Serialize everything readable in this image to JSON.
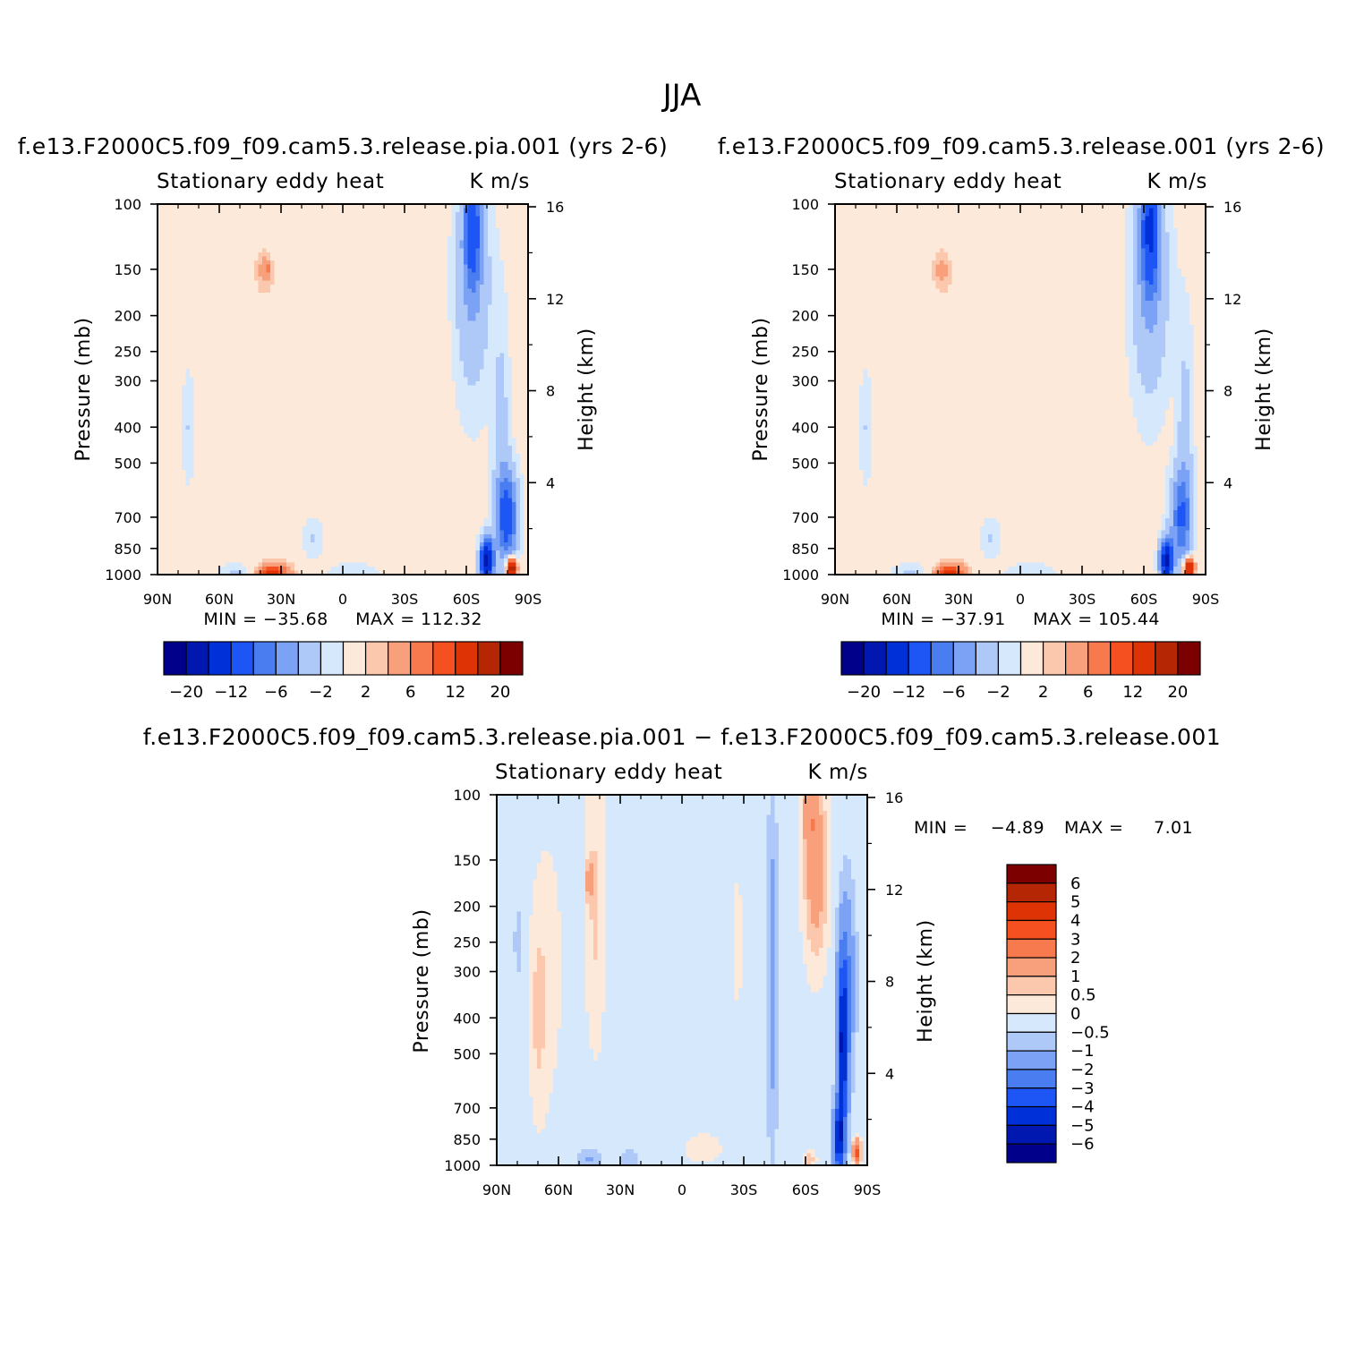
{
  "figure": {
    "title": "JJA"
  },
  "palettes": {
    "absolute": [
      "#00008b",
      "#0018b0",
      "#0030d8",
      "#1e55f5",
      "#4a7df0",
      "#7ba2f4",
      "#aec8f8",
      "#d6e8fc",
      "#fde9d9",
      "#fbc7ad",
      "#f8a07c",
      "#f77a4e",
      "#f5501f",
      "#de3305",
      "#b52605",
      "#7d0000"
    ],
    "difference": [
      "#00008b",
      "#0018b0",
      "#0030d8",
      "#1e55f5",
      "#4a7df0",
      "#7ba2f4",
      "#aec8f8",
      "#d6e8fc",
      "#fde9d9",
      "#fbc7ad",
      "#f8a07c",
      "#f77a4e",
      "#f5501f",
      "#de3305",
      "#b52605",
      "#7d0000"
    ]
  },
  "chart_data": [
    {
      "type": "heatmap",
      "run_title": "f.e13.F2000C5.f09_f09.cam5.3.release.pia.001 (yrs 2-6)",
      "field": "Stationary eddy heat",
      "units": "K m/s",
      "ylabel": "Pressure (mb)",
      "y2label": "Height (km)",
      "xlim": [
        90,
        -90
      ],
      "ylim": [
        100,
        1000
      ],
      "y_scale": "log",
      "x_ticks": [
        {
          "v": 90,
          "label": "90N"
        },
        {
          "v": 60,
          "label": "60N"
        },
        {
          "v": 30,
          "label": "30N"
        },
        {
          "v": 0,
          "label": "0"
        },
        {
          "v": -30,
          "label": "30S"
        },
        {
          "v": -60,
          "label": "60S"
        },
        {
          "v": -90,
          "label": "90S"
        }
      ],
      "y_ticks": [
        100,
        150,
        200,
        250,
        300,
        400,
        500,
        700,
        850,
        1000
      ],
      "height_ticks": [
        16,
        12,
        8,
        4
      ],
      "min_label": "MIN = −35.68",
      "max_label": "MAX = 112.32",
      "min": -35.68,
      "max": 112.32,
      "colorbar": {
        "orientation": "horizontal",
        "tick_labels": [
          "−20",
          "−12",
          "−6",
          "−2",
          "2",
          "6",
          "12",
          "20"
        ]
      },
      "features": [
        {
          "lat": 0,
          "p": 500,
          "v": -0.6,
          "dlat": 200,
          "dlogp": 5
        },
        {
          "lat": 40,
          "p": 200,
          "v": 0.9,
          "dlat": 11,
          "dlogp": 0.5
        },
        {
          "lat": 38,
          "p": 150,
          "v": 2.6,
          "dlat": 4.5,
          "dlogp": 0.13
        },
        {
          "lat": 36,
          "p": 150,
          "v": 3.4,
          "dlat": 1.3,
          "dlogp": 0.035
        },
        {
          "lat": 25,
          "p": 300,
          "v": 1.0,
          "dlat": 8,
          "dlogp": 0.9
        },
        {
          "lat": -42,
          "p": 200,
          "v": 0.9,
          "dlat": 8,
          "dlogp": 1.2
        },
        {
          "lat": -10,
          "p": 500,
          "v": 0.5,
          "dlat": 14,
          "dlogp": 0.35
        },
        {
          "lat": 34,
          "p": 1000,
          "v": 8.0,
          "dlat": 7,
          "dlogp": 0.06
        },
        {
          "lat": 34,
          "p": 1000,
          "v": 2.4,
          "dlat": 12,
          "dlogp": 0.12
        },
        {
          "lat": 50,
          "p": 990,
          "v": -2.0,
          "dlat": 9,
          "dlogp": 0.06
        },
        {
          "lat": 15,
          "p": 800,
          "v": -1.6,
          "dlat": 5,
          "dlogp": 0.12
        },
        {
          "lat": -5,
          "p": 1000,
          "v": -1.3,
          "dlat": 12,
          "dlogp": 0.07
        },
        {
          "lat": -63,
          "p": 115,
          "v": -8.0,
          "dlat": 4,
          "dlogp": 0.35
        },
        {
          "lat": -63,
          "p": 160,
          "v": -3.5,
          "dlat": 9,
          "dlogp": 0.7
        },
        {
          "lat": -77,
          "p": 430,
          "v": -2.2,
          "dlat": 4,
          "dlogp": 0.75
        },
        {
          "lat": -80,
          "p": 700,
          "v": -9.0,
          "dlat": 5,
          "dlogp": 0.28
        },
        {
          "lat": -70,
          "p": 920,
          "v": -18.0,
          "dlat": 3,
          "dlogp": 0.13
        },
        {
          "lat": -82,
          "p": 960,
          "v": 18.0,
          "dlat": 2.5,
          "dlogp": 0.06
        },
        {
          "lat": 75,
          "p": 400,
          "v": -1.5,
          "dlat": 3,
          "dlogp": 0.35
        }
      ]
    },
    {
      "type": "heatmap",
      "run_title": "f.e13.F2000C5.f09_f09.cam5.3.release.001 (yrs 2-6)",
      "field": "Stationary eddy heat",
      "units": "K m/s",
      "ylabel": "Pressure (mb)",
      "y2label": "Height (km)",
      "xlim": [
        90,
        -90
      ],
      "ylim": [
        100,
        1000
      ],
      "y_scale": "log",
      "x_ticks": [
        {
          "v": 90,
          "label": "90N"
        },
        {
          "v": 60,
          "label": "60N"
        },
        {
          "v": 30,
          "label": "30N"
        },
        {
          "v": 0,
          "label": "0"
        },
        {
          "v": -30,
          "label": "30S"
        },
        {
          "v": -60,
          "label": "60S"
        },
        {
          "v": -90,
          "label": "90S"
        }
      ],
      "y_ticks": [
        100,
        150,
        200,
        250,
        300,
        400,
        500,
        700,
        850,
        1000
      ],
      "height_ticks": [
        16,
        12,
        8,
        4
      ],
      "min_label": "MIN = −37.91",
      "max_label": "MAX = 105.44",
      "min": -37.91,
      "max": 105.44,
      "colorbar": {
        "orientation": "horizontal",
        "tick_labels": [
          "−20",
          "−12",
          "−6",
          "−2",
          "2",
          "6",
          "12",
          "20"
        ]
      },
      "features": [
        {
          "lat": 0,
          "p": 500,
          "v": -0.6,
          "dlat": 200,
          "dlogp": 5
        },
        {
          "lat": 40,
          "p": 200,
          "v": 0.9,
          "dlat": 11,
          "dlogp": 0.5
        },
        {
          "lat": 38,
          "p": 150,
          "v": 2.5,
          "dlat": 4.5,
          "dlogp": 0.13
        },
        {
          "lat": 25,
          "p": 300,
          "v": 1.0,
          "dlat": 8,
          "dlogp": 0.9
        },
        {
          "lat": -40,
          "p": 200,
          "v": 0.9,
          "dlat": 8,
          "dlogp": 1.2
        },
        {
          "lat": -10,
          "p": 500,
          "v": 0.5,
          "dlat": 14,
          "dlogp": 0.35
        },
        {
          "lat": 34,
          "p": 1000,
          "v": 7.5,
          "dlat": 7,
          "dlogp": 0.06
        },
        {
          "lat": 34,
          "p": 1000,
          "v": 2.4,
          "dlat": 12,
          "dlogp": 0.12
        },
        {
          "lat": 52,
          "p": 990,
          "v": -2.0,
          "dlat": 9,
          "dlogp": 0.06
        },
        {
          "lat": 15,
          "p": 800,
          "v": -1.6,
          "dlat": 5,
          "dlogp": 0.12
        },
        {
          "lat": -5,
          "p": 1000,
          "v": -1.3,
          "dlat": 12,
          "dlogp": 0.07
        },
        {
          "lat": -63,
          "p": 115,
          "v": -10.0,
          "dlat": 4,
          "dlogp": 0.35
        },
        {
          "lat": -63,
          "p": 160,
          "v": -4.0,
          "dlat": 9,
          "dlogp": 0.7
        },
        {
          "lat": -80,
          "p": 430,
          "v": -2.2,
          "dlat": 4,
          "dlogp": 0.75
        },
        {
          "lat": -78,
          "p": 700,
          "v": -7.0,
          "dlat": 5,
          "dlogp": 0.28
        },
        {
          "lat": -71,
          "p": 920,
          "v": -16.0,
          "dlat": 3,
          "dlogp": 0.13
        },
        {
          "lat": -82,
          "p": 960,
          "v": 16.0,
          "dlat": 2.5,
          "dlogp": 0.06
        },
        {
          "lat": 75,
          "p": 400,
          "v": -1.5,
          "dlat": 3,
          "dlogp": 0.35
        }
      ]
    },
    {
      "type": "heatmap",
      "run_title": "f.e13.F2000C5.f09_f09.cam5.3.release.pia.001 − f.e13.F2000C5.f09_f09.cam5.3.release.001",
      "field": "Stationary eddy heat",
      "units": "K m/s",
      "ylabel": "Pressure (mb)",
      "y2label": "Height (km)",
      "xlim": [
        90,
        -90
      ],
      "ylim": [
        100,
        1000
      ],
      "y_scale": "log",
      "x_ticks": [
        {
          "v": 90,
          "label": "90N"
        },
        {
          "v": 60,
          "label": "60N"
        },
        {
          "v": 30,
          "label": "30N"
        },
        {
          "v": 0,
          "label": "0"
        },
        {
          "v": -30,
          "label": "30S"
        },
        {
          "v": -60,
          "label": "60S"
        },
        {
          "v": -90,
          "label": "90S"
        }
      ],
      "y_ticks": [
        100,
        150,
        200,
        250,
        300,
        400,
        500,
        700,
        850,
        1000
      ],
      "height_ticks": [
        16,
        12,
        8,
        4
      ],
      "min_label": "MIN =",
      "min_value": "−4.89",
      "max_label": "MAX =",
      "max_value": "7.01",
      "min": -4.89,
      "max": 7.01,
      "colorbar": {
        "orientation": "vertical",
        "tick_labels": [
          "6",
          "5",
          "4",
          "3",
          "2",
          "1",
          "0.5",
          "0",
          "−0.5",
          "−1",
          "−2",
          "−3",
          "−4",
          "−5",
          "−6"
        ]
      },
      "features": [
        {
          "lat": 0,
          "p": 400,
          "v": -0.3,
          "dlat": 200,
          "dlogp": 5
        },
        {
          "lat": 42,
          "p": 200,
          "v": 0.9,
          "dlat": 5,
          "dlogp": 0.9
        },
        {
          "lat": 45,
          "p": 170,
          "v": 1.6,
          "dlat": 1.5,
          "dlogp": 0.12
        },
        {
          "lat": 70,
          "p": 400,
          "v": 0.7,
          "dlat": 4,
          "dlogp": 0.6
        },
        {
          "lat": 65,
          "p": 300,
          "v": 0.5,
          "dlat": 8,
          "dlogp": 0.9
        },
        {
          "lat": 15,
          "p": 350,
          "v": 0.3,
          "dlat": 4,
          "dlogp": 0.7
        },
        {
          "lat": -27,
          "p": 250,
          "v": 0.5,
          "dlat": 3,
          "dlogp": 0.5
        },
        {
          "lat": -65,
          "p": 160,
          "v": 1.9,
          "dlat": 6,
          "dlogp": 0.55
        },
        {
          "lat": -62,
          "p": 110,
          "v": 1.2,
          "dlat": 4,
          "dlogp": 0.25
        },
        {
          "lat": -78,
          "p": 500,
          "v": -4.5,
          "dlat": 2.5,
          "dlogp": 0.55
        },
        {
          "lat": -76,
          "p": 850,
          "v": -4.2,
          "dlat": 2.5,
          "dlogp": 0.2
        },
        {
          "lat": -80,
          "p": 320,
          "v": -1.8,
          "dlat": 4,
          "dlogp": 0.55
        },
        {
          "lat": -85,
          "p": 920,
          "v": 3.5,
          "dlat": 2,
          "dlogp": 0.08
        },
        {
          "lat": -62,
          "p": 960,
          "v": 1.1,
          "dlat": 3,
          "dlogp": 0.05
        },
        {
          "lat": -44,
          "p": 300,
          "v": -0.9,
          "dlat": 2,
          "dlogp": 1.5
        },
        {
          "lat": 80,
          "p": 250,
          "v": -0.5,
          "dlat": 1.5,
          "dlogp": 0.3
        },
        {
          "lat": 45,
          "p": 960,
          "v": -0.8,
          "dlat": 6,
          "dlogp": 0.06
        },
        {
          "lat": 25,
          "p": 960,
          "v": -0.7,
          "dlat": 4,
          "dlogp": 0.05
        },
        {
          "lat": -10,
          "p": 900,
          "v": 0.5,
          "dlat": 12,
          "dlogp": 0.12
        }
      ]
    }
  ]
}
